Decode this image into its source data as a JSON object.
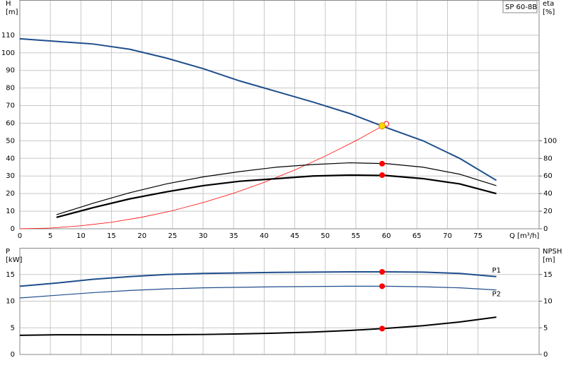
{
  "chart_data": [
    {
      "type": "line",
      "annotation": "SP 60-8B",
      "xlabel": "Q [m³/h]",
      "ylabel": [
        "H",
        "[m]"
      ],
      "y2label": [
        "eta",
        "[%]"
      ],
      "xlim": [
        0,
        85
      ],
      "xticks": [
        0,
        5,
        10,
        15,
        20,
        25,
        30,
        35,
        40,
        45,
        50,
        55,
        60,
        65,
        70,
        75
      ],
      "ylim": [
        0,
        130
      ],
      "yticks": [
        0,
        10,
        20,
        30,
        40,
        50,
        60,
        70,
        80,
        90,
        100,
        110
      ],
      "y2lim": [
        0,
        260
      ],
      "y2ticks": [
        0,
        20,
        40,
        60,
        80,
        100
      ],
      "grid": true,
      "series": [
        {
          "color": "#1f4e8c",
          "width": 2,
          "x": [
            0,
            6,
            12,
            18,
            24,
            30,
            36,
            42,
            48,
            54,
            60,
            66,
            72,
            78
          ],
          "values": [
            108,
            106.5,
            105,
            102,
            97,
            91,
            84,
            78,
            72,
            65.5,
            57.5,
            50,
            40,
            27.5
          ]
        },
        {
          "color": "#ff0000",
          "width": 0.8,
          "x": [
            0,
            5,
            10,
            15,
            20,
            25,
            30,
            35,
            40,
            45,
            50,
            55,
            60
          ],
          "values": [
            0,
            0.4,
            1.7,
            3.7,
            6.6,
            10.3,
            14.9,
            20.2,
            26.4,
            33.4,
            41.3,
            50,
            59.6
          ]
        },
        {
          "color": "#000000",
          "width": 1.2,
          "axis": "y2",
          "x": [
            6,
            12,
            18,
            24,
            30,
            36,
            42,
            48,
            54,
            60,
            66,
            72,
            78
          ],
          "values": [
            16,
            29,
            41,
            51,
            59,
            65,
            70,
            73,
            75,
            74,
            70,
            62,
            49
          ]
        },
        {
          "color": "#000000",
          "width": 2.2,
          "axis": "y2",
          "x": [
            6,
            12,
            18,
            24,
            30,
            36,
            42,
            48,
            54,
            60,
            66,
            72,
            78
          ],
          "values": [
            13,
            24,
            34,
            42,
            49,
            54,
            57,
            60,
            61,
            60.5,
            57,
            51,
            40
          ]
        },
        {
          "marker": "open",
          "color": "#ff0000",
          "x": [
            60
          ],
          "values": [
            59.6
          ]
        },
        {
          "marker": "dot",
          "color": "#ff0000",
          "axis": "y2",
          "x": [
            59.3,
            59.3
          ],
          "values": [
            74,
            61
          ]
        },
        {
          "marker": "dot",
          "color": "#ffd700",
          "x": [
            59.3
          ],
          "values": [
            58.5
          ]
        }
      ]
    },
    {
      "type": "line",
      "ylabel": [
        "P",
        "[kW]"
      ],
      "y2label": [
        "NPSH",
        "[m]"
      ],
      "xlim": [
        0,
        85
      ],
      "ylim": [
        0,
        20
      ],
      "yticks": [
        0,
        5,
        10,
        15
      ],
      "y2lim": [
        0,
        20
      ],
      "y2ticks": [
        0,
        5,
        10,
        15
      ],
      "grid": true,
      "series": [
        {
          "name": "P1",
          "color": "#1f4e8c",
          "width": 2,
          "x": [
            0,
            6,
            12,
            18,
            24,
            30,
            36,
            42,
            48,
            54,
            60,
            66,
            72,
            78
          ],
          "values": [
            12.8,
            13.4,
            14.1,
            14.6,
            15,
            15.2,
            15.3,
            15.4,
            15.45,
            15.5,
            15.5,
            15.45,
            15.2,
            14.6
          ]
        },
        {
          "name": "P2",
          "color": "#1f4e8c",
          "width": 1.2,
          "x": [
            0,
            6,
            12,
            18,
            24,
            30,
            36,
            42,
            48,
            54,
            60,
            66,
            72,
            78
          ],
          "values": [
            10.6,
            11.1,
            11.6,
            12,
            12.3,
            12.5,
            12.6,
            12.7,
            12.75,
            12.8,
            12.8,
            12.7,
            12.5,
            12.1
          ]
        },
        {
          "color": "#000000",
          "width": 2,
          "axis": "y2",
          "x": [
            0,
            6,
            12,
            18,
            24,
            30,
            36,
            42,
            48,
            54,
            60,
            66,
            72,
            78
          ],
          "values": [
            3.6,
            3.7,
            3.7,
            3.7,
            3.7,
            3.75,
            3.85,
            4,
            4.2,
            4.5,
            4.9,
            5.4,
            6.1,
            7
          ]
        },
        {
          "marker": "dot",
          "color": "#ff0000",
          "axis": "y2",
          "x": [
            59.3,
            59.3,
            59.3
          ],
          "values": [
            15.5,
            12.8,
            4.85
          ]
        }
      ]
    }
  ]
}
